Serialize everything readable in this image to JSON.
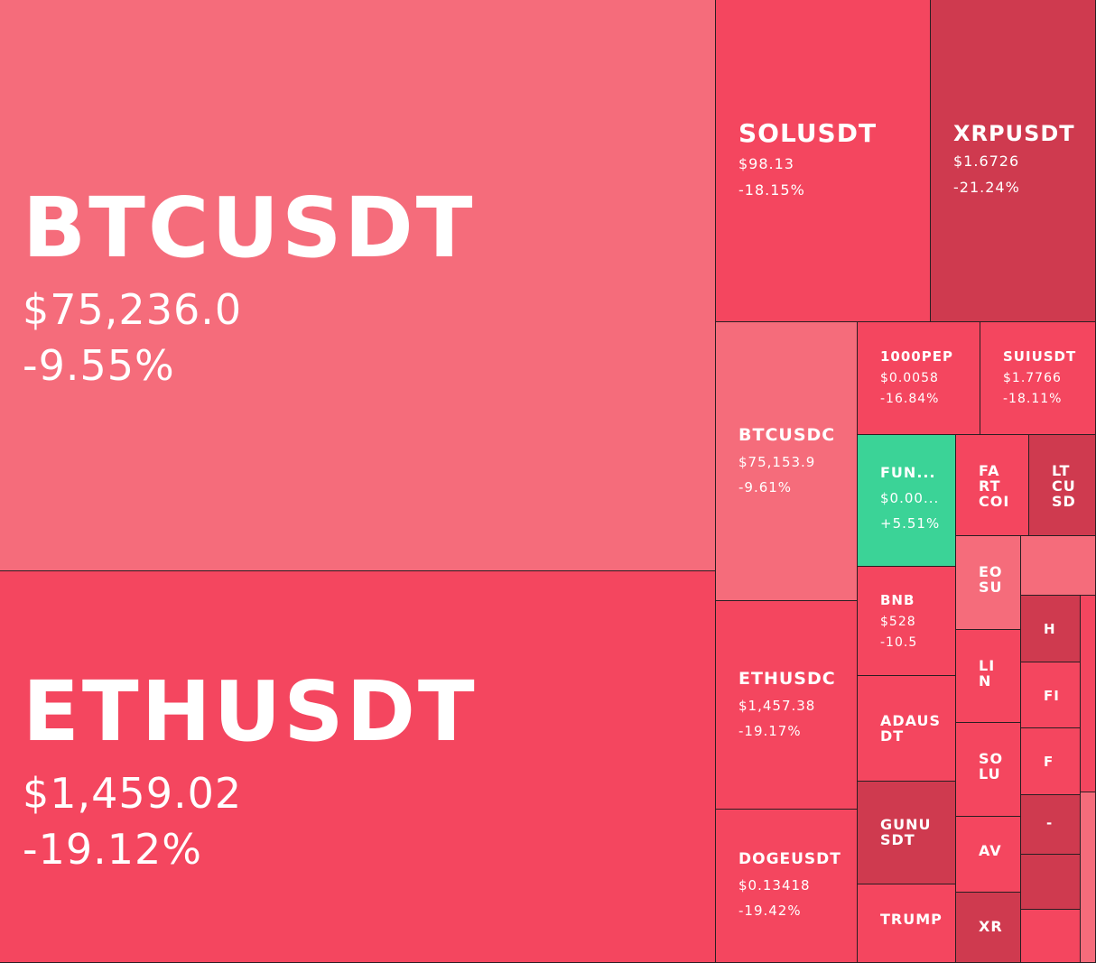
{
  "colors": {
    "light_red": "#f56c7b",
    "red": "#f4465f",
    "dark_red": "#cf3a4f",
    "green": "#3bd397"
  },
  "tiles": {
    "btcusdt": {
      "symbol": "BTCUSDT",
      "price": "$75,236.0",
      "change": "-9.55%"
    },
    "ethusdt": {
      "symbol": "ETHUSDT",
      "price": "$1,459.02",
      "change": "-19.12%"
    },
    "solusdt": {
      "symbol": "SOLUSDT",
      "price": "$98.13",
      "change": "-18.15%"
    },
    "xrpusdt": {
      "symbol": "XRPUSDT",
      "price": "$1.6726",
      "change": "-21.24%"
    },
    "btcusdc": {
      "symbol": "BTCUSDC",
      "price": "$75,153.9",
      "change": "-9.61%"
    },
    "pepe": {
      "symbol": "1000PEP",
      "price": "$0.0058",
      "change": "-16.84%"
    },
    "suiusdt": {
      "symbol": "SUIUSDT",
      "price": "$1.7766",
      "change": "-18.11%"
    },
    "fun": {
      "symbol": "FUN...",
      "price": "$0.00...",
      "change": "+5.51%"
    },
    "fartcoin": {
      "symbol": "FA\nRT\nCOI"
    },
    "ltcusd": {
      "symbol": "LT\nCU\nSD"
    },
    "eosusd": {
      "symbol": "EO\nSU"
    },
    "bnb": {
      "symbol": "BNB",
      "price": "$528",
      "change": "-10.5"
    },
    "link": {
      "symbol": "LI\nN"
    },
    "h": {
      "symbol": "H"
    },
    "ethusdc": {
      "symbol": "ETHUSDC",
      "price": "$1,457.38",
      "change": "-19.17%"
    },
    "adausdt": {
      "symbol": "ADAUS\nDT"
    },
    "solusdc": {
      "symbol": "SO\nLU"
    },
    "fi": {
      "symbol": "FI"
    },
    "f": {
      "symbol": "F"
    },
    "gunusdt": {
      "symbol": "GUNU\nSDT"
    },
    "avax": {
      "symbol": "AV"
    },
    "dash": {
      "symbol": "-"
    },
    "dogeusdt": {
      "symbol": "DOGEUSDT",
      "price": "$0.13418",
      "change": "-19.42%"
    },
    "trump": {
      "symbol": "TRUMP"
    },
    "xr": {
      "symbol": "XR"
    }
  }
}
